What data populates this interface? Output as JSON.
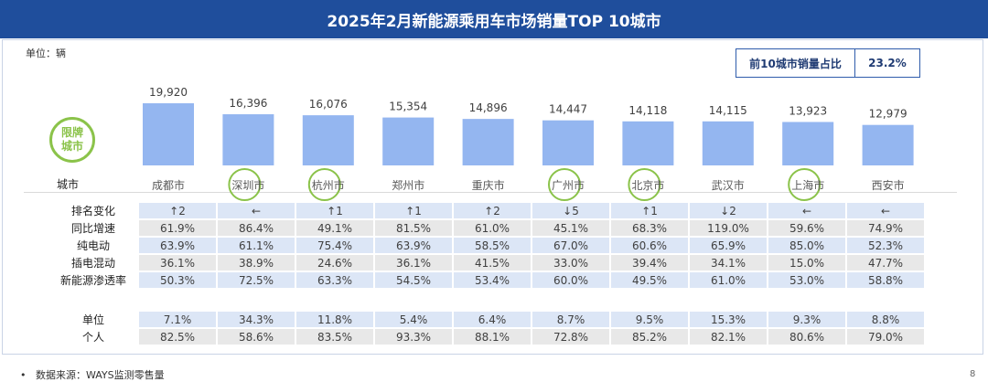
{
  "title": "2025年2月新能源乘用车市场销量TOP 10城市",
  "unit_label": "单位：辆",
  "share_box": {
    "label": "前10城市销量占比",
    "value": "23.2%"
  },
  "badge": {
    "line1": "限牌",
    "line2": "城市"
  },
  "city_header": "城市",
  "restricted_cities": [
    "深圳市",
    "杭州市",
    "广州市",
    "北京市",
    "上海市"
  ],
  "colors": {
    "bar": "#94b6f0",
    "badge_green": "#8bc34a",
    "title_bg": "#1f4e9c"
  },
  "chart_data": {
    "type": "bar",
    "categories": [
      "成都市",
      "深圳市",
      "杭州市",
      "郑州市",
      "重庆市",
      "广州市",
      "北京市",
      "武汉市",
      "上海市",
      "西安市"
    ],
    "values": [
      19920,
      16396,
      16076,
      15354,
      14896,
      14447,
      14118,
      14115,
      13923,
      12979
    ],
    "value_labels": [
      "19,920",
      "16,396",
      "16,076",
      "15,354",
      "14,896",
      "14,447",
      "14,118",
      "14,115",
      "13,923",
      "12,979"
    ]
  },
  "rows": [
    {
      "label": "排名变化",
      "style": "blue",
      "values": [
        "↑2",
        "←",
        "↑1",
        "↑1",
        "↑2",
        "↓5",
        "↑1",
        "↓2",
        "←",
        "←"
      ]
    },
    {
      "label": "同比增速",
      "style": "gray",
      "values": [
        "61.9%",
        "86.4%",
        "49.1%",
        "81.5%",
        "61.0%",
        "45.1%",
        "68.3%",
        "119.0%",
        "59.6%",
        "74.9%"
      ]
    },
    {
      "label": "纯电动",
      "style": "blue",
      "values": [
        "63.9%",
        "61.1%",
        "75.4%",
        "63.9%",
        "58.5%",
        "67.0%",
        "60.6%",
        "65.9%",
        "85.0%",
        "52.3%"
      ]
    },
    {
      "label": "插电混动",
      "style": "gray",
      "values": [
        "36.1%",
        "38.9%",
        "24.6%",
        "36.1%",
        "41.5%",
        "33.0%",
        "39.4%",
        "34.1%",
        "15.0%",
        "47.7%"
      ]
    },
    {
      "label": "新能源渗透率",
      "style": "blue",
      "values": [
        "50.3%",
        "72.5%",
        "63.3%",
        "54.5%",
        "53.4%",
        "60.0%",
        "49.5%",
        "61.0%",
        "53.0%",
        "58.8%"
      ]
    }
  ],
  "rows2": [
    {
      "label": "单位",
      "style": "blue",
      "values": [
        "7.1%",
        "34.3%",
        "11.8%",
        "5.4%",
        "6.4%",
        "8.7%",
        "9.5%",
        "15.3%",
        "9.3%",
        "8.8%"
      ]
    },
    {
      "label": "个人",
      "style": "gray",
      "values": [
        "82.5%",
        "58.6%",
        "83.5%",
        "93.3%",
        "88.1%",
        "72.8%",
        "85.2%",
        "82.1%",
        "80.6%",
        "79.0%"
      ]
    }
  ],
  "footnote": "数据来源：WAYS监测零售量",
  "page_number": "8"
}
